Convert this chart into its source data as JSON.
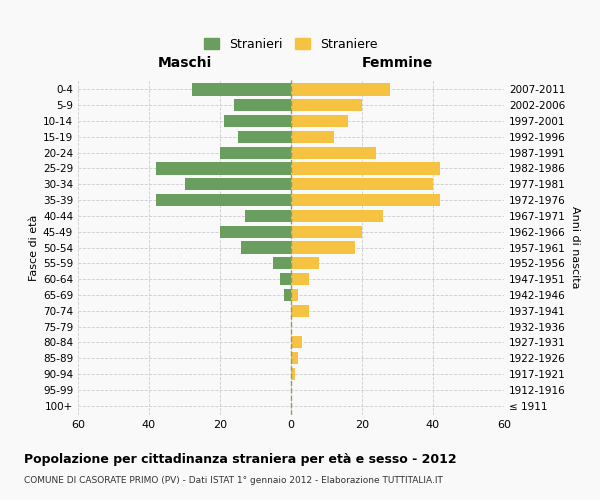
{
  "age_groups": [
    "100+",
    "95-99",
    "90-94",
    "85-89",
    "80-84",
    "75-79",
    "70-74",
    "65-69",
    "60-64",
    "55-59",
    "50-54",
    "45-49",
    "40-44",
    "35-39",
    "30-34",
    "25-29",
    "20-24",
    "15-19",
    "10-14",
    "5-9",
    "0-4"
  ],
  "birth_years": [
    "≤ 1911",
    "1912-1916",
    "1917-1921",
    "1922-1926",
    "1927-1931",
    "1932-1936",
    "1937-1941",
    "1942-1946",
    "1947-1951",
    "1952-1956",
    "1957-1961",
    "1962-1966",
    "1967-1971",
    "1972-1976",
    "1977-1981",
    "1982-1986",
    "1987-1991",
    "1992-1996",
    "1997-2001",
    "2002-2006",
    "2007-2011"
  ],
  "maschi": [
    0,
    0,
    0,
    0,
    0,
    0,
    0,
    2,
    3,
    5,
    14,
    20,
    13,
    38,
    30,
    38,
    20,
    15,
    19,
    16,
    28
  ],
  "femmine": [
    0,
    0,
    1,
    2,
    3,
    0,
    5,
    2,
    5,
    8,
    18,
    20,
    26,
    42,
    40,
    42,
    24,
    12,
    16,
    20,
    28
  ],
  "maschi_color": "#6a9e5f",
  "femmine_color": "#f5c242",
  "bg_color": "#f9f9f9",
  "grid_color": "#cccccc",
  "title": "Popolazione per cittadinanza straniera per età e sesso - 2012",
  "subtitle": "COMUNE DI CASORATE PRIMO (PV) - Dati ISTAT 1° gennaio 2012 - Elaborazione TUTTITALIA.IT",
  "ylabel_left": "Fasce di età",
  "ylabel_right": "Anni di nascita",
  "xlabel_maschi": "Maschi",
  "xlabel_femmine": "Femmine",
  "legend_maschi": "Stranieri",
  "legend_femmine": "Straniere",
  "xlim": 60,
  "center_line_color": "#999966"
}
